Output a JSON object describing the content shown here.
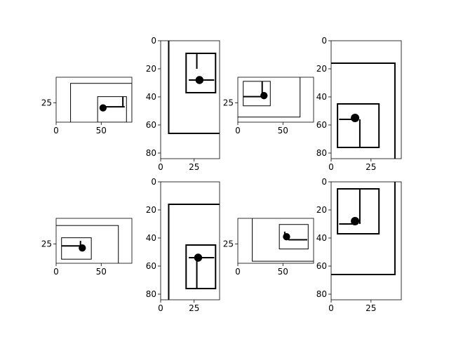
{
  "figure": {
    "background": "#ffffff",
    "foreground": "#000000"
  },
  "chart_data": [
    {
      "type": "image",
      "panel": "row1-col1",
      "size": [
        84,
        44
      ],
      "xticks": [
        0,
        50
      ],
      "yticks": [
        25
      ],
      "rects": [
        [
          16,
          6,
          84,
          50,
          1
        ],
        [
          46,
          19,
          78,
          44,
          1
        ]
      ],
      "segments": [
        [
          54,
          29,
          76,
          29,
          2
        ],
        [
          74,
          19,
          74,
          29,
          2
        ]
      ],
      "dots": [
        [
          52,
          30,
          4
        ]
      ]
    },
    {
      "type": "image",
      "panel": "row1-col2",
      "size": [
        44,
        84
      ],
      "xticks": [
        0,
        25
      ],
      "yticks": [
        0,
        20,
        40,
        60,
        80
      ],
      "rects": [
        [
          6,
          -1,
          46,
          66,
          2
        ],
        [
          19,
          9,
          41,
          37,
          2
        ]
      ],
      "segments": [
        [
          21,
          28,
          40,
          28,
          2
        ],
        [
          27,
          9,
          27,
          20,
          2
        ]
      ],
      "dots": [
        [
          29,
          28,
          3
        ]
      ]
    },
    {
      "type": "image",
      "panel": "row1-col3",
      "size": [
        84,
        44
      ],
      "xticks": [
        0,
        50
      ],
      "yticks": [
        25
      ],
      "rects": [
        [
          -1,
          -1,
          69,
          39,
          1
        ],
        [
          6,
          4,
          36,
          28,
          1
        ]
      ],
      "segments": [
        [
          6,
          19,
          26,
          19,
          2
        ],
        [
          27,
          4,
          27,
          19,
          2
        ]
      ],
      "dots": [
        [
          29,
          18,
          4
        ]
      ]
    },
    {
      "type": "image",
      "panel": "row1-col4",
      "size": [
        44,
        84
      ],
      "xticks": [
        0,
        25
      ],
      "yticks": [
        0,
        20,
        40,
        60,
        80
      ],
      "rects": [
        [
          -2,
          16,
          40,
          86,
          2
        ],
        [
          4,
          45,
          30,
          76,
          2
        ]
      ],
      "segments": [
        [
          5,
          56,
          16,
          56,
          2
        ],
        [
          18,
          56,
          18,
          76,
          2
        ]
      ],
      "dots": [
        [
          15,
          55,
          3
        ]
      ]
    },
    {
      "type": "image",
      "panel": "row2-col1",
      "size": [
        84,
        44
      ],
      "xticks": [
        0,
        50
      ],
      "yticks": [
        25
      ],
      "rects": [
        [
          -1,
          7,
          69,
          55,
          1
        ],
        [
          6,
          19,
          39,
          40,
          1
        ]
      ],
      "segments": [
        [
          6,
          27,
          28,
          27,
          2
        ],
        [
          27,
          22,
          27,
          29,
          2
        ]
      ],
      "dots": [
        [
          29,
          29,
          4
        ]
      ]
    },
    {
      "type": "image",
      "panel": "row2-col2",
      "size": [
        44,
        84
      ],
      "xticks": [
        0,
        25
      ],
      "yticks": [
        0,
        20,
        40,
        60,
        80
      ],
      "rects": [
        [
          6,
          16,
          46,
          86,
          2
        ],
        [
          19,
          45,
          41,
          76,
          2
        ]
      ],
      "segments": [
        [
          21,
          54,
          40,
          54,
          2
        ],
        [
          27,
          56,
          27,
          76,
          2
        ]
      ],
      "dots": [
        [
          28,
          54,
          3
        ]
      ]
    },
    {
      "type": "image",
      "panel": "row2-col3",
      "size": [
        84,
        44
      ],
      "xticks": [
        0,
        50
      ],
      "yticks": [
        25
      ],
      "rects": [
        [
          16,
          -1,
          86,
          42,
          1
        ],
        [
          46,
          6,
          78,
          30,
          1
        ]
      ],
      "segments": [
        [
          56,
          21,
          77,
          21,
          2
        ],
        [
          52,
          13,
          52,
          19,
          2
        ]
      ],
      "dots": [
        [
          54,
          18,
          4
        ]
      ]
    },
    {
      "type": "image",
      "panel": "row2-col4",
      "size": [
        44,
        84
      ],
      "xticks": [
        0,
        25
      ],
      "yticks": [
        0,
        20,
        40,
        60,
        80
      ],
      "rects": [
        [
          -2,
          -1,
          40,
          66,
          2
        ],
        [
          4,
          5,
          30,
          37,
          2
        ]
      ],
      "segments": [
        [
          5,
          30,
          16,
          30,
          2
        ],
        [
          18,
          5,
          18,
          30,
          2
        ]
      ],
      "dots": [
        [
          15,
          28,
          3
        ]
      ]
    }
  ]
}
